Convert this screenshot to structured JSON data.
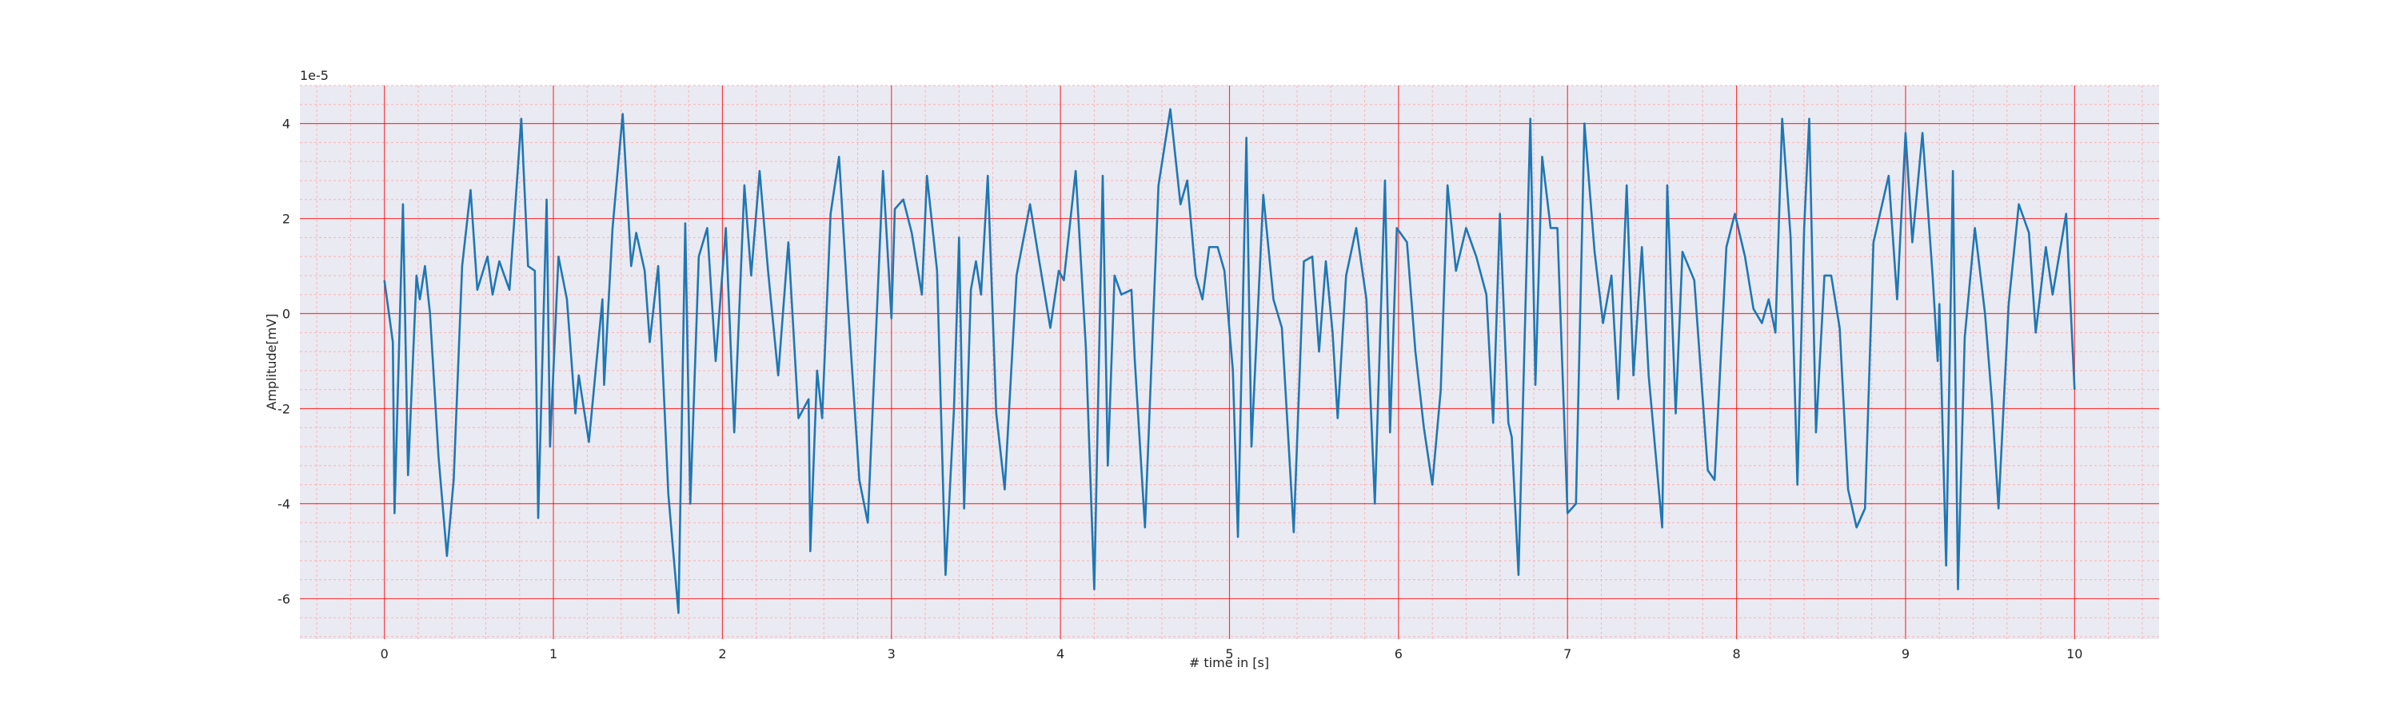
{
  "chart_data": {
    "type": "line",
    "xlabel": "# time in [s]",
    "ylabel": "Amplitude[mV]",
    "y_offset_label": "1e-5",
    "xlim": [
      -0.5,
      10.5
    ],
    "ylim": [
      -6.85,
      4.8
    ],
    "xticks": [
      0,
      1,
      2,
      3,
      4,
      5,
      6,
      7,
      8,
      9,
      10
    ],
    "yticks": [
      -6,
      -4,
      -2,
      0,
      2,
      4
    ],
    "xminorticks": [
      -0.4,
      -0.2,
      0.2,
      0.4,
      0.6,
      0.8,
      1.2,
      1.4,
      1.6,
      1.8,
      2.2,
      2.4,
      2.6,
      2.8,
      3.2,
      3.4,
      3.6,
      3.8,
      4.2,
      4.4,
      4.6,
      4.8,
      5.2,
      5.4,
      5.6,
      5.8,
      6.2,
      6.4,
      6.6,
      6.8,
      7.2,
      7.4,
      7.6,
      7.8,
      8.2,
      8.4,
      8.6,
      8.8,
      9.2,
      9.4,
      9.6,
      9.8,
      10.2,
      10.4
    ],
    "yminorticks": [
      -6.8,
      -6.4,
      -5.6,
      -5.2,
      -4.8,
      -4.4,
      -3.6,
      -3.2,
      -2.8,
      -2.4,
      -1.6,
      -1.2,
      -0.8,
      -0.4,
      0.4,
      0.8,
      1.2,
      1.6,
      2.4,
      2.8,
      3.2,
      3.6,
      4.4,
      4.8
    ],
    "grid": true,
    "grid_color": "#ff0000",
    "minor_grid_color": "#ffb0b0",
    "background": "#eaeaf2",
    "series": [
      {
        "color": "#1f77b4",
        "x": [
          0,
          0.05,
          0.06,
          0.11,
          0.14,
          0.19,
          0.21,
          0.24,
          0.27,
          0.32,
          0.37,
          0.41,
          0.46,
          0.51,
          0.55,
          0.61,
          0.64,
          0.68,
          0.74,
          0.81,
          0.85,
          0.89,
          0.91,
          0.96,
          0.98,
          1.03,
          1.08,
          1.13,
          1.15,
          1.21,
          1.29,
          1.3,
          1.35,
          1.41,
          1.46,
          1.49,
          1.54,
          1.57,
          1.62,
          1.68,
          1.74,
          1.78,
          1.81,
          1.86,
          1.91,
          1.96,
          2.02,
          2.07,
          2.13,
          2.17,
          2.22,
          2.27,
          2.33,
          2.39,
          2.45,
          2.51,
          2.52,
          2.56,
          2.59,
          2.64,
          2.69,
          2.74,
          2.81,
          2.86,
          2.95,
          3.0,
          3.02,
          3.07,
          3.12,
          3.18,
          3.21,
          3.27,
          3.32,
          3.37,
          3.4,
          3.43,
          3.47,
          3.5,
          3.53,
          3.57,
          3.62,
          3.67,
          3.74,
          3.82,
          3.87,
          3.94,
          3.99,
          4.02,
          4.09,
          4.15,
          4.2,
          4.25,
          4.28,
          4.32,
          4.36,
          4.42,
          4.44,
          4.5,
          4.58,
          4.65,
          4.71,
          4.75,
          4.8,
          4.84,
          4.88,
          4.93,
          4.97,
          5.02,
          5.05,
          5.1,
          5.13,
          5.2,
          5.26,
          5.31,
          5.38,
          5.44,
          5.49,
          5.53,
          5.57,
          5.61,
          5.64,
          5.69,
          5.75,
          5.81,
          5.86,
          5.92,
          5.95,
          5.99,
          6.05,
          6.1,
          6.15,
          6.2,
          6.25,
          6.29,
          6.34,
          6.4,
          6.46,
          6.52,
          6.56,
          6.6,
          6.65,
          6.67,
          6.71,
          6.78,
          6.81,
          6.85,
          6.9,
          6.94,
          7.0,
          7.05,
          7.1,
          7.16,
          7.21,
          7.26,
          7.3,
          7.35,
          7.39,
          7.44,
          7.48,
          7.56,
          7.59,
          7.64,
          7.68,
          7.75,
          7.79,
          7.83,
          7.87,
          7.94,
          7.99,
          8.05,
          8.1,
          8.15,
          8.19,
          8.23,
          8.27,
          8.32,
          8.36,
          8.4,
          8.43,
          8.47,
          8.52,
          8.56,
          8.61,
          8.66,
          8.71,
          8.76,
          8.81,
          8.9,
          8.95,
          9.0,
          9.04,
          9.1,
          9.16,
          9.19,
          9.2,
          9.24,
          9.28,
          9.31,
          9.35,
          9.41,
          9.47,
          9.51,
          9.55,
          9.61,
          9.67,
          9.73,
          9.77,
          9.83,
          9.87,
          9.95,
          10
        ],
        "values": [
          0.7,
          -0.6,
          -4.2,
          2.3,
          -3.4,
          0.8,
          0.3,
          1.0,
          0,
          -3,
          -5.1,
          -3.5,
          1,
          2.6,
          0.5,
          1.2,
          0.4,
          1.1,
          0.5,
          4.1,
          1,
          0.9,
          -4.3,
          2.4,
          -2.8,
          1.2,
          0.3,
          -2.1,
          -1.3,
          -2.7,
          0.3,
          -1.5,
          1.8,
          4.2,
          1,
          1.7,
          0.9,
          -0.6,
          1.0,
          -3.8,
          -6.3,
          1.9,
          -4,
          1.2,
          1.8,
          -1,
          1.8,
          -2.5,
          2.7,
          0.8,
          3,
          0.9,
          -1.3,
          1.5,
          -2.2,
          -1.8,
          -5,
          -1.2,
          -2.2,
          2.1,
          3.3,
          0.3,
          -3.5,
          -4.4,
          3,
          -0.1,
          2.2,
          2.4,
          1.7,
          0.4,
          2.9,
          0.9,
          -5.5,
          -2,
          1.6,
          -4.1,
          0.5,
          1.1,
          0.4,
          2.9,
          -2.1,
          -3.7,
          0.8,
          2.3,
          1.2,
          -0.3,
          0.9,
          0.7,
          3,
          -0.7,
          -5.8,
          2.9,
          -3.2,
          0.8,
          0.4,
          0.5,
          -1,
          -4.5,
          2.7,
          4.3,
          2.3,
          2.8,
          0.8,
          0.3,
          1.4,
          1.4,
          0.9,
          -1.2,
          -4.7,
          3.7,
          -2.8,
          2.5,
          0.3,
          -0.3,
          -4.6,
          1.1,
          1.2,
          -0.8,
          1.1,
          -0.4,
          -2.2,
          0.8,
          1.8,
          0.3,
          -4,
          2.8,
          -2.5,
          1.8,
          1.5,
          -0.8,
          -2.4,
          -3.6,
          -1.6,
          2.7,
          0.9,
          1.8,
          1.2,
          0.4,
          -2.3,
          2.1,
          -2.3,
          -2.6,
          -5.5,
          4.1,
          -1.5,
          3.3,
          1.8,
          1.8,
          -4.2,
          -4,
          4,
          1.3,
          -0.2,
          0.8,
          -1.8,
          2.7,
          -1.3,
          1.4,
          -1.3,
          -4.5,
          2.7,
          -2.1,
          1.3,
          0.7,
          -1.3,
          -3.3,
          -3.5,
          1.4,
          2.1,
          1.2,
          0.1,
          -0.2,
          0.3,
          -0.4,
          4.1,
          1.6,
          -3.6,
          1.8,
          4.1,
          -2.5,
          0.8,
          0.8,
          -0.3,
          -3.7,
          -4.5,
          -4.1,
          1.5,
          2.9,
          0.3,
          3.8,
          1.5,
          3.8,
          0.8,
          -1,
          0.2,
          -5.3,
          3,
          -5.8,
          -0.5,
          1.8,
          0,
          -1.8,
          -4.1,
          0.2,
          2.3,
          1.7,
          -0.4,
          1.4,
          0.4,
          2.1,
          -1.6
        ]
      }
    ]
  }
}
